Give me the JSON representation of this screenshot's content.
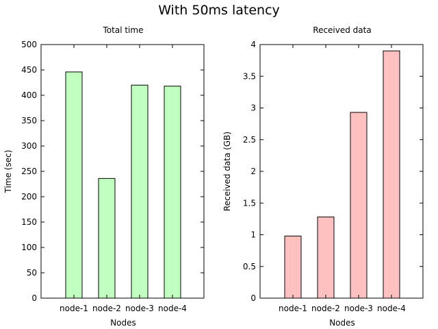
{
  "figure": {
    "title": "With 50ms latency"
  },
  "chart_data": [
    {
      "type": "bar",
      "title": "Total time",
      "xlabel": "Nodes",
      "ylabel": "Time (sec)",
      "categories": [
        "node-1",
        "node-2",
        "node-3",
        "node-4"
      ],
      "values": [
        446,
        236,
        420,
        418
      ],
      "ylim": [
        0,
        500
      ],
      "yticks": [
        0,
        50,
        100,
        150,
        200,
        250,
        300,
        350,
        400,
        450,
        500
      ],
      "ytick_labels": [
        "0",
        "50",
        "100",
        "150",
        "200",
        "250",
        "300",
        "350",
        "400",
        "450",
        "500"
      ],
      "bar_color": "#c0ffc0",
      "grid": false,
      "legend": "none"
    },
    {
      "type": "bar",
      "title": "Received data",
      "xlabel": "Nodes",
      "ylabel": "Received data (GB)",
      "categories": [
        "node-1",
        "node-2",
        "node-3",
        "node-4"
      ],
      "values": [
        0.98,
        1.28,
        2.93,
        3.9
      ],
      "ylim": [
        0,
        4
      ],
      "yticks": [
        0,
        0.5,
        1,
        1.5,
        2,
        2.5,
        3,
        3.5,
        4
      ],
      "ytick_labels": [
        "0",
        "0.5",
        "1",
        "1.5",
        "2",
        "2.5",
        "3",
        "3.5",
        "4"
      ],
      "bar_color": "#ffc0c0",
      "grid": false,
      "legend": "none"
    }
  ]
}
